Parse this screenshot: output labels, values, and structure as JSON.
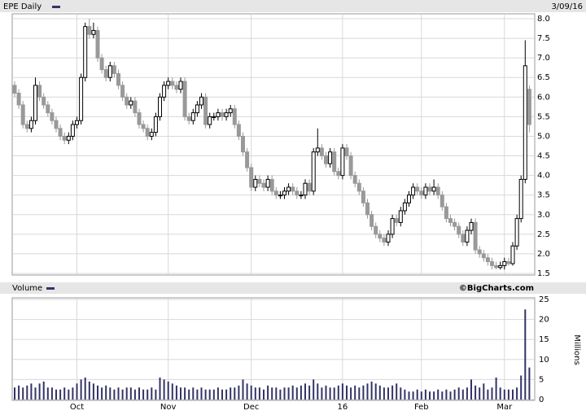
{
  "chart_data": [
    {
      "type": "candlestick",
      "title": "EPE Daily",
      "date": "3/09/16",
      "open": [
        6.3,
        6.1,
        5.8,
        5.3,
        5.2,
        5.4,
        6.3,
        6.0,
        5.8,
        5.6,
        5.4,
        5.2,
        5.0,
        4.9,
        5.0,
        5.3,
        5.4,
        6.5,
        7.8,
        7.6,
        7.7,
        7.0,
        6.7,
        6.5,
        6.8,
        6.6,
        6.3,
        6.0,
        5.8,
        5.9,
        5.6,
        5.3,
        5.2,
        5.0,
        5.1,
        5.5,
        6.0,
        6.3,
        6.4,
        6.3,
        6.2,
        6.4,
        5.5,
        5.4,
        5.6,
        5.8,
        6.0,
        5.3,
        5.5,
        5.5,
        5.6,
        5.5,
        5.6,
        5.7,
        5.3,
        5.0,
        4.6,
        4.2,
        3.7,
        3.9,
        3.8,
        3.7,
        3.9,
        3.6,
        3.5,
        3.5,
        3.6,
        3.7,
        3.6,
        3.5,
        3.5,
        3.8,
        3.6,
        4.6,
        4.7,
        4.5,
        4.3,
        4.6,
        4.1,
        4.0,
        4.7,
        4.5,
        4.0,
        3.8,
        3.6,
        3.3,
        3.0,
        2.7,
        2.5,
        2.4,
        2.3,
        2.5,
        2.9,
        2.8,
        3.1,
        3.3,
        3.5,
        3.7,
        3.6,
        3.5,
        3.7,
        3.6,
        3.7,
        3.5,
        3.2,
        2.9,
        2.8,
        2.7,
        2.5,
        2.3,
        2.6,
        2.8,
        2.1,
        2.0,
        1.9,
        1.8,
        1.7,
        1.65,
        1.7,
        1.8,
        1.75,
        2.2,
        2.9,
        3.9,
        6.2
      ],
      "high": [
        6.4,
        6.2,
        5.9,
        5.4,
        5.5,
        6.5,
        6.4,
        6.1,
        5.9,
        5.7,
        5.5,
        5.3,
        5.1,
        5.1,
        5.4,
        5.5,
        6.6,
        7.9,
        8.0,
        7.9,
        7.8,
        7.1,
        6.8,
        6.9,
        6.9,
        6.7,
        6.4,
        6.1,
        6.0,
        6.0,
        5.7,
        5.4,
        5.3,
        5.2,
        5.6,
        6.1,
        6.4,
        6.5,
        6.5,
        6.4,
        6.5,
        6.5,
        5.6,
        5.7,
        5.9,
        6.1,
        6.1,
        5.6,
        5.6,
        5.7,
        5.7,
        5.7,
        5.8,
        5.8,
        5.4,
        5.1,
        4.7,
        4.3,
        4.0,
        4.0,
        3.9,
        4.0,
        4.0,
        3.7,
        3.6,
        3.7,
        3.8,
        3.8,
        3.7,
        3.6,
        3.9,
        3.9,
        4.7,
        5.2,
        4.8,
        4.6,
        4.7,
        4.7,
        4.2,
        4.8,
        4.8,
        4.6,
        4.1,
        3.9,
        3.7,
        3.4,
        3.1,
        2.8,
        2.6,
        2.5,
        2.6,
        3.0,
        3.0,
        3.2,
        3.4,
        3.6,
        3.8,
        3.8,
        3.7,
        3.8,
        3.8,
        3.9,
        3.8,
        3.6,
        3.3,
        3.0,
        2.9,
        2.8,
        2.6,
        2.7,
        2.9,
        2.9,
        2.2,
        2.1,
        2.0,
        1.9,
        1.8,
        1.8,
        1.9,
        1.9,
        2.3,
        3.0,
        4.0,
        7.45,
        6.3
      ],
      "low": [
        6.0,
        5.7,
        5.2,
        5.1,
        5.1,
        5.3,
        5.9,
        5.7,
        5.5,
        5.3,
        5.1,
        4.9,
        4.8,
        4.8,
        4.9,
        5.2,
        5.3,
        6.4,
        7.5,
        7.5,
        6.9,
        6.6,
        6.4,
        6.4,
        6.5,
        6.2,
        5.9,
        5.7,
        5.7,
        5.5,
        5.2,
        5.1,
        4.9,
        4.9,
        5.0,
        5.4,
        5.9,
        6.2,
        6.2,
        6.1,
        6.1,
        5.4,
        5.3,
        5.3,
        5.5,
        5.7,
        5.2,
        5.2,
        5.4,
        5.4,
        5.4,
        5.4,
        5.5,
        5.2,
        4.9,
        4.5,
        4.1,
        3.6,
        3.6,
        3.7,
        3.6,
        3.6,
        3.5,
        3.4,
        3.4,
        3.4,
        3.5,
        3.5,
        3.4,
        3.4,
        3.4,
        3.5,
        3.5,
        4.5,
        4.4,
        4.2,
        4.2,
        4.0,
        3.9,
        3.9,
        4.4,
        3.9,
        3.7,
        3.5,
        3.2,
        2.9,
        2.6,
        2.4,
        2.3,
        2.2,
        2.2,
        2.4,
        2.7,
        2.7,
        3.0,
        3.2,
        3.4,
        3.5,
        3.4,
        3.4,
        3.5,
        3.5,
        3.4,
        3.1,
        2.8,
        2.7,
        2.6,
        2.4,
        2.2,
        2.2,
        2.5,
        2.0,
        1.9,
        1.8,
        1.7,
        1.6,
        1.6,
        1.6,
        1.6,
        1.7,
        1.7,
        2.1,
        2.8,
        3.8,
        5.1
      ],
      "close": [
        6.1,
        5.8,
        5.3,
        5.2,
        5.4,
        6.3,
        6.0,
        5.8,
        5.6,
        5.4,
        5.2,
        5.0,
        4.9,
        5.0,
        5.3,
        5.4,
        6.5,
        7.8,
        7.6,
        7.7,
        7.0,
        6.7,
        6.5,
        6.8,
        6.6,
        6.3,
        6.0,
        5.8,
        5.9,
        5.6,
        5.3,
        5.2,
        5.0,
        5.1,
        5.5,
        6.0,
        6.3,
        6.4,
        6.3,
        6.2,
        6.4,
        5.5,
        5.4,
        5.6,
        5.8,
        6.0,
        5.3,
        5.5,
        5.5,
        5.6,
        5.5,
        5.6,
        5.7,
        5.3,
        5.0,
        4.6,
        4.2,
        3.7,
        3.9,
        3.8,
        3.7,
        3.9,
        3.6,
        3.5,
        3.5,
        3.6,
        3.7,
        3.6,
        3.5,
        3.5,
        3.8,
        3.6,
        4.6,
        4.7,
        4.5,
        4.3,
        4.6,
        4.1,
        4.0,
        4.7,
        4.5,
        4.0,
        3.8,
        3.6,
        3.3,
        3.0,
        2.7,
        2.5,
        2.4,
        2.3,
        2.5,
        2.9,
        2.8,
        3.1,
        3.3,
        3.5,
        3.7,
        3.6,
        3.5,
        3.7,
        3.6,
        3.7,
        3.5,
        3.2,
        2.9,
        2.8,
        2.7,
        2.5,
        2.3,
        2.6,
        2.8,
        2.1,
        2.0,
        1.9,
        1.8,
        1.7,
        1.65,
        1.7,
        1.8,
        1.75,
        2.2,
        2.9,
        3.9,
        6.8,
        5.3
      ],
      "ylim": [
        1.5,
        8.0
      ],
      "yticks": [
        {
          "value": 1.5,
          "label": "1.5"
        },
        {
          "value": 2,
          "label": "2.0"
        },
        {
          "value": 2.5,
          "label": "2.5"
        },
        {
          "value": 3,
          "label": "3.0"
        },
        {
          "value": 3.5,
          "label": "3.5"
        },
        {
          "value": 4,
          "label": "4.0"
        },
        {
          "value": 4.5,
          "label": "4.5"
        },
        {
          "value": 5,
          "label": "5.0"
        },
        {
          "value": 5.5,
          "label": "5.5"
        },
        {
          "value": 6,
          "label": "6.0"
        },
        {
          "value": 6.5,
          "label": "6.5"
        },
        {
          "value": 7,
          "label": "7.0"
        },
        {
          "value": 7.5,
          "label": "7.5"
        },
        {
          "value": 8,
          "label": "8.0"
        }
      ],
      "up_color": "#ffffff",
      "down_color": "#999999",
      "legend_color": "#333366",
      "grid": true
    },
    {
      "type": "bar",
      "title": "Volume",
      "source": "©BigCharts.com",
      "ylabel": "Millions",
      "categories": [
        null,
        null,
        null,
        null,
        null,
        null,
        null,
        null,
        null,
        null,
        null,
        null,
        null,
        null,
        null,
        "Oct",
        null,
        null,
        null,
        null,
        null,
        null,
        null,
        null,
        null,
        null,
        null,
        null,
        null,
        null,
        null,
        null,
        null,
        null,
        null,
        null,
        null,
        "Nov",
        null,
        null,
        null,
        null,
        null,
        null,
        null,
        null,
        null,
        null,
        null,
        null,
        null,
        null,
        null,
        null,
        null,
        null,
        null,
        "Dec",
        null,
        null,
        null,
        null,
        null,
        null,
        null,
        null,
        null,
        null,
        null,
        null,
        null,
        null,
        null,
        null,
        null,
        null,
        null,
        null,
        null,
        "16",
        null,
        null,
        null,
        null,
        null,
        null,
        null,
        null,
        null,
        null,
        null,
        null,
        null,
        null,
        null,
        null,
        null,
        null,
        "Feb",
        null,
        null,
        null,
        null,
        null,
        null,
        null,
        null,
        null,
        null,
        null,
        null,
        null,
        null,
        null,
        null,
        null,
        null,
        null,
        "Mar",
        null,
        null,
        null,
        null,
        null,
        null
      ],
      "values": [
        3,
        3.5,
        3,
        3.5,
        4,
        3,
        4,
        4.5,
        3,
        3,
        2.5,
        2.5,
        3,
        2.5,
        3,
        4,
        5,
        5.5,
        4.5,
        4,
        3.5,
        3,
        3.5,
        3,
        2.5,
        3,
        2.5,
        3,
        3,
        2.5,
        3,
        2.5,
        2.5,
        3,
        2.5,
        5.5,
        5,
        4.5,
        4,
        3.5,
        3,
        3,
        2.5,
        3,
        2.5,
        3,
        2.5,
        2.5,
        2.5,
        3,
        2.5,
        2.5,
        3,
        3,
        3.5,
        5,
        4,
        3.5,
        3,
        3,
        2.5,
        3.5,
        3,
        3,
        2.5,
        3,
        3,
        3.5,
        3,
        3.5,
        4,
        3.5,
        5,
        4,
        3,
        3.5,
        3,
        3,
        3.5,
        4,
        3.5,
        3,
        3.5,
        3,
        3.5,
        4,
        4.5,
        4,
        3.5,
        3,
        3,
        3.5,
        4,
        3,
        2.5,
        2,
        2,
        2.5,
        2,
        2.5,
        2,
        2,
        2.5,
        2,
        2.5,
        2,
        2.5,
        3,
        2.5,
        3,
        5,
        3.5,
        3,
        4,
        2.5,
        3,
        5.5,
        3,
        2.5,
        2.5,
        2.5,
        3,
        6,
        22.5,
        8
      ],
      "color": "#333366",
      "ylim": [
        0,
        25
      ],
      "yticks": [
        0,
        5,
        10,
        15,
        20,
        25
      ],
      "grid": true
    }
  ]
}
